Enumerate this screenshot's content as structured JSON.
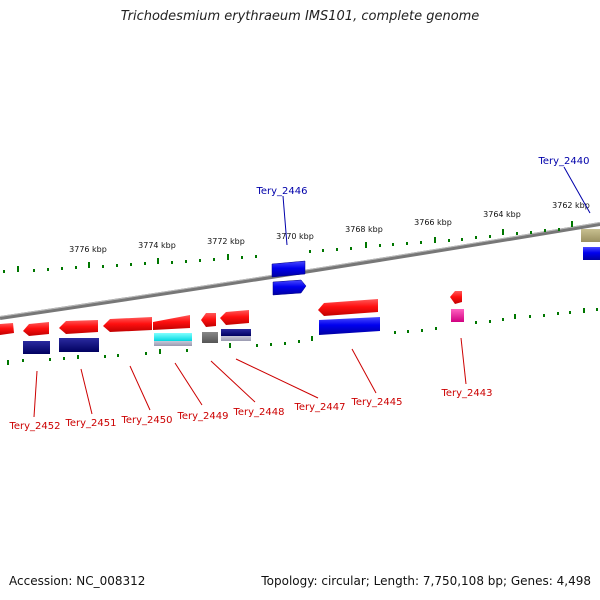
{
  "title": "Trichodesmium erythraeum IMS101, complete genome",
  "footer": {
    "accession": "Accession: NC_008312",
    "topology": "Topology: circular; Length: 7,750,108 bp; Genes: 4,498"
  },
  "colors": {
    "forward_gene": "#ee0000",
    "reverse_gene": "#0000ee",
    "tick": "#007700",
    "backbone": "#888888",
    "label_forward": "#cc0000",
    "label_reverse": "#0000aa"
  },
  "scale_labels": [
    "3776 kbp",
    "3774 kbp",
    "3772 kbp",
    "3770 kbp",
    "3768 kbp",
    "3766 kbp",
    "3764 kbp",
    "3762 kbp"
  ],
  "gene_labels": [
    {
      "id": "tery-2440",
      "text": "Tery_2440",
      "strand": "reverse"
    },
    {
      "id": "tery-2446",
      "text": "Tery_2446",
      "strand": "reverse"
    },
    {
      "id": "tery-2452",
      "text": "Tery_2452",
      "strand": "forward"
    },
    {
      "id": "tery-2451",
      "text": "Tery_2451",
      "strand": "forward"
    },
    {
      "id": "tery-2450",
      "text": "Tery_2450",
      "strand": "forward"
    },
    {
      "id": "tery-2449",
      "text": "Tery_2449",
      "strand": "forward"
    },
    {
      "id": "tery-2448",
      "text": "Tery_2448",
      "strand": "forward"
    },
    {
      "id": "tery-2447",
      "text": "Tery_2447",
      "strand": "forward"
    },
    {
      "id": "tery-2445",
      "text": "Tery_2445",
      "strand": "forward"
    },
    {
      "id": "tery-2443",
      "text": "Tery_2443",
      "strand": "forward"
    }
  ]
}
